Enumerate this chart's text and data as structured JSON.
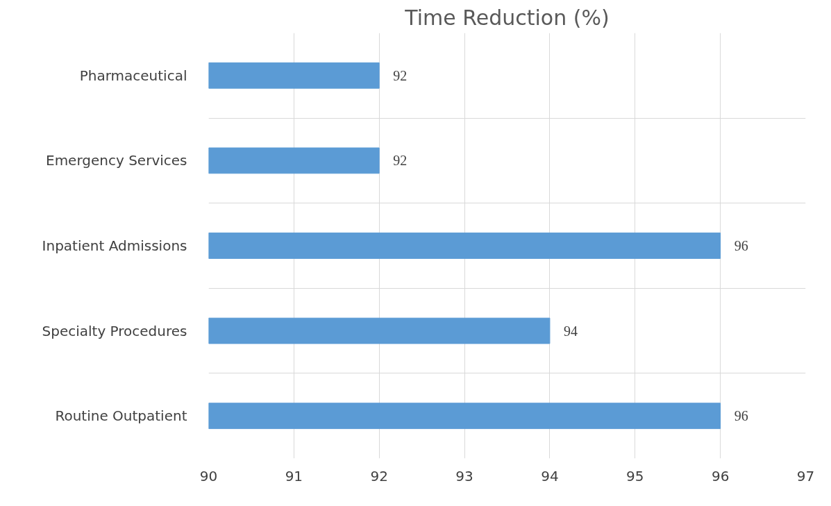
{
  "chart_data": {
    "type": "bar",
    "orientation": "horizontal",
    "title": "Time Reduction (%)",
    "categories": [
      "Pharmaceutical",
      "Emergency Services",
      "Inpatient Admissions",
      "Specialty Procedures",
      "Routine Outpatient"
    ],
    "values": [
      92,
      92,
      96,
      94,
      96
    ],
    "color": "#5b9bd5",
    "xlim": [
      90,
      97
    ],
    "xticks": [
      90,
      91,
      92,
      93,
      94,
      95,
      96,
      97
    ],
    "grid": true,
    "data_labels": true
  }
}
